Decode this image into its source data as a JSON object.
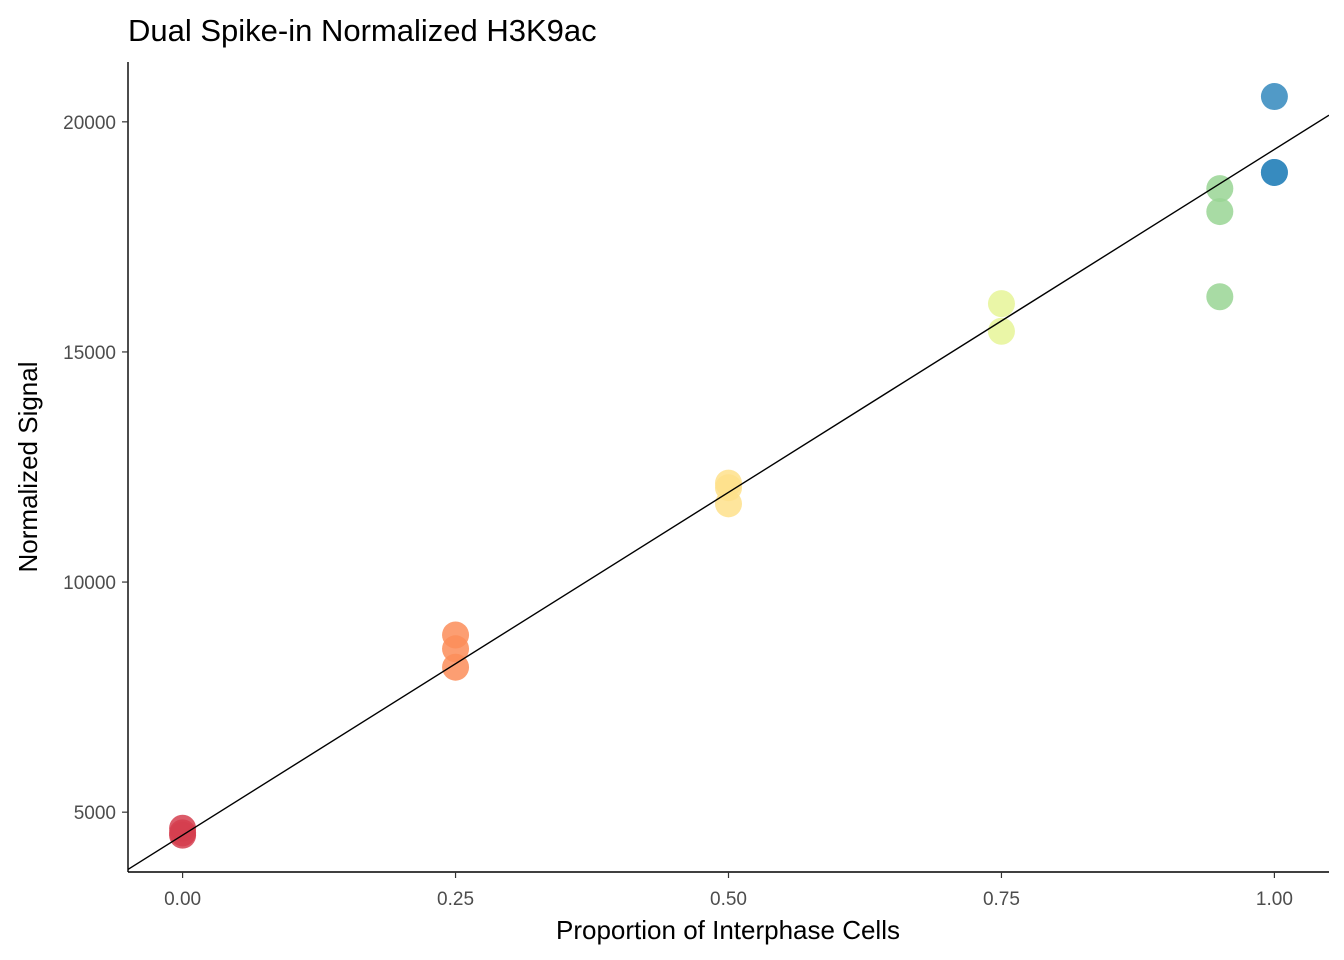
{
  "chart_data": {
    "type": "scatter",
    "title": "Dual Spike-in Normalized H3K9ac",
    "xlabel": "Proportion of Interphase Cells",
    "ylabel": "Normalized Signal",
    "xlim": [
      -0.05,
      1.05
    ],
    "ylim": [
      3700,
      21300
    ],
    "x_ticks": [
      0.0,
      0.25,
      0.5,
      0.75,
      1.0
    ],
    "x_tick_labels": [
      "0.00",
      "0.25",
      "0.50",
      "0.75",
      "1.00"
    ],
    "y_ticks": [
      5000,
      10000,
      15000,
      20000
    ],
    "y_tick_labels": [
      "5000",
      "10000",
      "15000",
      "20000"
    ],
    "grid": false,
    "legend": "none",
    "fit_line": {
      "intercept": 4500,
      "slope": 14900
    },
    "points": [
      {
        "x": 0.0,
        "y": 4650,
        "color": "#d53e4f"
      },
      {
        "x": 0.0,
        "y": 4550,
        "color": "#d53e4f"
      },
      {
        "x": 0.0,
        "y": 4500,
        "color": "#d53e4f"
      },
      {
        "x": 0.25,
        "y": 8850,
        "color": "#fc8d59"
      },
      {
        "x": 0.25,
        "y": 8550,
        "color": "#fc8d59"
      },
      {
        "x": 0.25,
        "y": 8150,
        "color": "#fc8d59"
      },
      {
        "x": 0.5,
        "y": 12150,
        "color": "#fee08b"
      },
      {
        "x": 0.5,
        "y": 12050,
        "color": "#fee08b"
      },
      {
        "x": 0.5,
        "y": 11700,
        "color": "#fee08b"
      },
      {
        "x": 0.75,
        "y": 16050,
        "color": "#e6f598"
      },
      {
        "x": 0.75,
        "y": 15450,
        "color": "#e6f598"
      },
      {
        "x": 0.95,
        "y": 18550,
        "color": "#99d594"
      },
      {
        "x": 0.95,
        "y": 18050,
        "color": "#99d594"
      },
      {
        "x": 0.95,
        "y": 16200,
        "color": "#99d594"
      },
      {
        "x": 1.0,
        "y": 20550,
        "color": "#3288bd"
      },
      {
        "x": 1.0,
        "y": 18900,
        "color": "#3288bd"
      },
      {
        "x": 1.0,
        "y": 18900,
        "color": "#3288bd"
      }
    ]
  }
}
